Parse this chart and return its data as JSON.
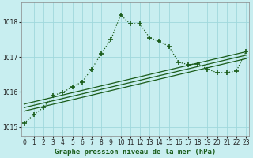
{
  "title": "Graphe pression niveau de la mer (hPa)",
  "bg_color": "#c8eef0",
  "grid_color": "#a0d8dc",
  "line_color": "#1a5c1a",
  "xlim": [
    -0.3,
    23.3
  ],
  "ylim": [
    1014.75,
    1018.55
  ],
  "yticks": [
    1015,
    1016,
    1017,
    1018
  ],
  "xticks": [
    0,
    1,
    2,
    3,
    4,
    5,
    6,
    7,
    8,
    9,
    10,
    11,
    12,
    13,
    14,
    15,
    16,
    17,
    18,
    19,
    20,
    21,
    22,
    23
  ],
  "line1_x": [
    0,
    23
  ],
  "line1_y": [
    1015.45,
    1016.95
  ],
  "line2_x": [
    0,
    23
  ],
  "line2_y": [
    1015.55,
    1017.05
  ],
  "line3_x": [
    0,
    23
  ],
  "line3_y": [
    1015.65,
    1017.15
  ],
  "main_x": [
    0,
    1,
    2,
    3,
    4,
    5,
    6,
    7,
    8,
    9,
    10,
    11,
    12,
    13,
    14,
    15,
    16,
    17,
    18,
    19,
    20,
    21,
    22,
    23
  ],
  "main_y": [
    1015.1,
    1015.35,
    1015.55,
    1015.9,
    1015.98,
    1016.15,
    1016.28,
    1016.65,
    1017.1,
    1017.5,
    1018.2,
    1017.95,
    1017.95,
    1017.55,
    1017.45,
    1017.3,
    1016.85,
    1016.78,
    1016.8,
    1016.65,
    1016.55,
    1016.55,
    1016.6,
    1017.15
  ],
  "title_fontsize": 6.5,
  "tick_fontsize": 5.5
}
